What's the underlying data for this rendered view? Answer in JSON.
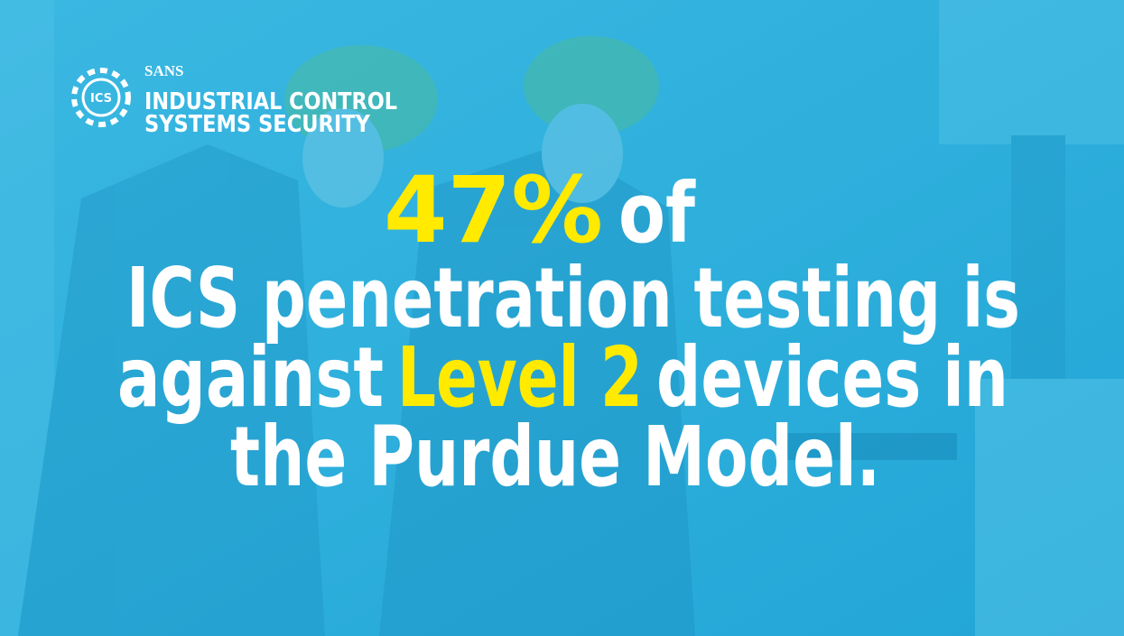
{
  "logo": {
    "badge": "ICS",
    "brand": "SANS",
    "line1": "INDUSTRIAL CONTROL",
    "line2": "SYSTEMS SECURITY"
  },
  "headline": {
    "stat": "47%",
    "stat_tail": "of",
    "line2": "ICS penetration testing is",
    "line3_start": "against",
    "line3_highlight": "Level 2",
    "line3_end": "devices in",
    "line4": "the Purdue Model."
  }
}
